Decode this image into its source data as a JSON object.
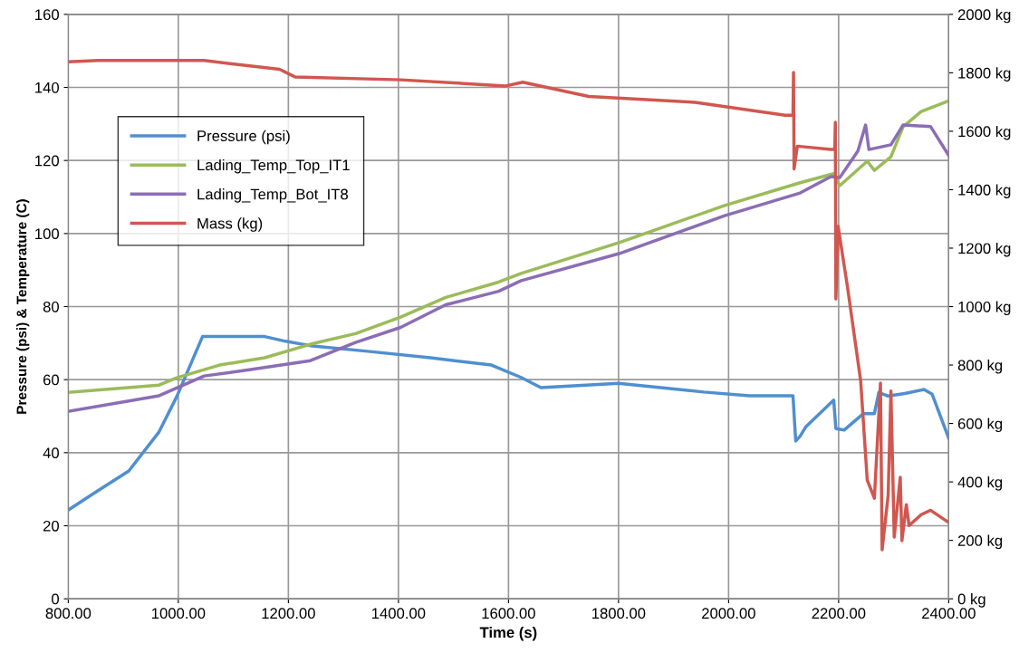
{
  "chart_data": {
    "type": "line",
    "xlabel": "Time (s)",
    "ylabel": "Pressure (psi) & Temperature (C)",
    "xlim": [
      800,
      2400
    ],
    "xticks": [
      {
        "value": 800,
        "label": "800.00"
      },
      {
        "value": 1000,
        "label": "1000.00"
      },
      {
        "value": 1200,
        "label": "1200.00"
      },
      {
        "value": 1400,
        "label": "1400.00"
      },
      {
        "value": 1600,
        "label": "1600.00"
      },
      {
        "value": 1800,
        "label": "1800.00"
      },
      {
        "value": 2000,
        "label": "2000.00"
      },
      {
        "value": 2200,
        "label": "2200.00"
      },
      {
        "value": 2400,
        "label": "2400.00"
      }
    ],
    "ylim": [
      0,
      160
    ],
    "yticks": [
      0,
      20,
      40,
      60,
      80,
      100,
      120,
      140,
      160
    ],
    "y2lim": [
      0,
      2000
    ],
    "y2ticks": [
      {
        "value": 0,
        "label": "0 kg"
      },
      {
        "value": 200,
        "label": "200 kg"
      },
      {
        "value": 400,
        "label": "400 kg"
      },
      {
        "value": 600,
        "label": "600 kg"
      },
      {
        "value": 800,
        "label": "800 kg"
      },
      {
        "value": 1000,
        "label": "1000 kg"
      },
      {
        "value": 1200,
        "label": "1200 kg"
      },
      {
        "value": 1400,
        "label": "1400 kg"
      },
      {
        "value": 1600,
        "label": "1600 kg"
      },
      {
        "value": 1800,
        "label": "1800 kg"
      },
      {
        "value": 2000,
        "label": "2000 kg"
      }
    ],
    "grid": true,
    "legend": "left",
    "marker": "none",
    "line_style": "solid",
    "series": [
      {
        "name": "Pressure (psi)",
        "color": "#4f8fcf",
        "x": [
          800,
          854,
          910,
          965,
          997,
          1044,
          1157,
          1195,
          1240,
          1348,
          1458,
          1569,
          1623,
          1659,
          1800,
          1955,
          2038,
          2117,
          2122,
          2130,
          2140,
          2191,
          2195,
          2210,
          2245,
          2265,
          2273,
          2290,
          2320,
          2355,
          2370,
          2400
        ],
        "values": [
          24.3,
          29.6,
          35,
          45.7,
          55.3,
          71.8,
          71.8,
          70.5,
          69.3,
          67.7,
          66,
          64,
          60.6,
          57.8,
          59,
          56.6,
          55.6,
          55.6,
          43.2,
          44.5,
          47,
          54.4,
          46.6,
          46.2,
          50.7,
          50.7,
          56.5,
          55.5,
          56.2,
          57.3,
          56,
          44
        ]
      },
      {
        "name": "Lading_Temp_Top_IT1",
        "color": "#9bbb59",
        "x": [
          800,
          965,
          997,
          1075,
          1157,
          1240,
          1322,
          1404,
          1486,
          1582,
          1623,
          1801,
          1993,
          2130,
          2191,
          2202,
          2252,
          2265,
          2295,
          2317,
          2350,
          2400
        ],
        "values": [
          56.5,
          58.5,
          60.5,
          64,
          66,
          69.7,
          72.6,
          77.1,
          82.5,
          86.7,
          89.1,
          97.5,
          107.7,
          113.9,
          116.4,
          113.1,
          119.8,
          117.3,
          121,
          129.2,
          133.4,
          136.3
        ]
      },
      {
        "name": "Lading_Temp_Bot_IT8",
        "color": "#8b6db5",
        "x": [
          800,
          965,
          1047,
          1129,
          1240,
          1322,
          1404,
          1486,
          1582,
          1623,
          1801,
          1993,
          2130,
          2186,
          2202,
          2235,
          2249,
          2255,
          2295,
          2317,
          2367,
          2400
        ],
        "values": [
          51.3,
          55.6,
          61,
          62.7,
          65.2,
          70.2,
          74.3,
          80.5,
          84.2,
          87.1,
          94.5,
          104.9,
          111.1,
          115.6,
          115.3,
          122.6,
          129.7,
          123,
          124.3,
          129.7,
          129.3,
          121.4
        ]
      },
      {
        "name": "Mass (kg)",
        "color": "#d0574f",
        "axis": "y2",
        "x": [
          800,
          854,
          1047,
          1184,
          1212,
          1404,
          1595,
          1626,
          1746,
          1939,
          2103,
          2117,
          2118,
          2119,
          2125,
          2186,
          2193,
          2194,
          2195,
          2199,
          2216,
          2240,
          2252,
          2265,
          2276,
          2279,
          2290,
          2295,
          2301,
          2312,
          2315,
          2323,
          2328,
          2350,
          2367,
          2400
        ],
        "values": [
          1838,
          1842,
          1842,
          1812,
          1786,
          1776,
          1755,
          1768,
          1719,
          1699,
          1655,
          1655,
          1801,
          1471,
          1549,
          1538,
          1538,
          1631,
          1026,
          1275,
          1068,
          747,
          406,
          344,
          738,
          168,
          354,
          711,
          211,
          416,
          199,
          322,
          251,
          288,
          303,
          261
        ]
      }
    ]
  }
}
